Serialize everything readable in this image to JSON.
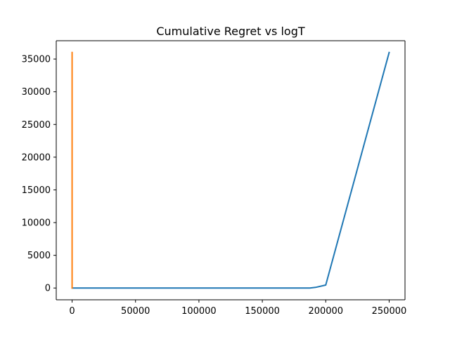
{
  "chart_data": {
    "type": "line",
    "title": "Cumulative Regret vs logT",
    "xlabel": "",
    "ylabel": "",
    "xlim": [
      -12500,
      262500
    ],
    "ylim": [
      -1800,
      37800
    ],
    "x_ticks": [
      0,
      50000,
      100000,
      150000,
      200000,
      250000
    ],
    "x_tick_labels": [
      "0",
      "50000",
      "100000",
      "150000",
      "200000",
      "250000"
    ],
    "y_ticks": [
      0,
      5000,
      10000,
      15000,
      20000,
      25000,
      30000,
      35000
    ],
    "y_tick_labels": [
      "0",
      "5000",
      "10000",
      "15000",
      "20000",
      "25000",
      "30000",
      "35000"
    ],
    "grid": false,
    "legend": "none",
    "series": [
      {
        "color": "#1f77b4",
        "x": [
          0,
          187500,
          192000,
          200000,
          250000
        ],
        "y": [
          0,
          0,
          100,
          450,
          36000
        ]
      },
      {
        "color": "#ff7f0e",
        "x": [
          0,
          0
        ],
        "y": [
          0,
          36000
        ]
      }
    ]
  }
}
